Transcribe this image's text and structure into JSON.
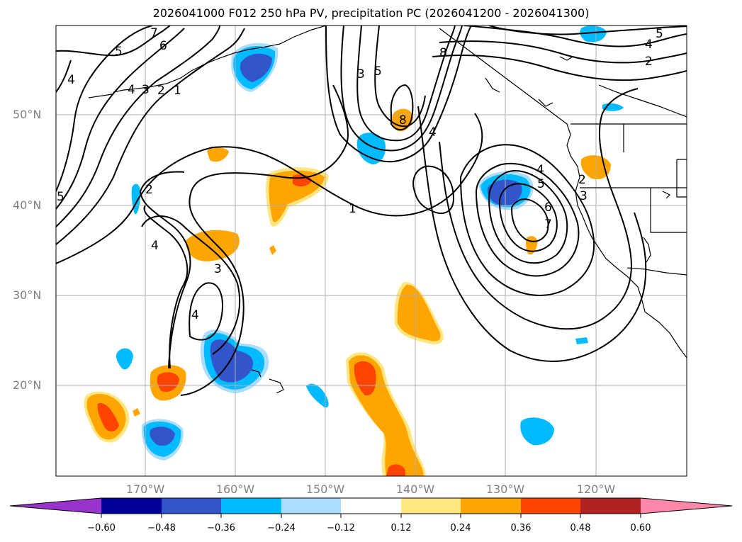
{
  "title": "2026041000 F012 250 hPa PV, precipitation PC (2026041200 - 2026041300)",
  "colors": {
    "contour": "#000000",
    "grid": "#b0b0b0",
    "coast": "#000000",
    "neg": [
      "#9933cc",
      "#000099",
      "#3355cc",
      "#00bbff",
      "#aaddff"
    ],
    "pos": [
      "#ffe680",
      "#ffa500",
      "#ff4400",
      "#b22222",
      "#ff88aa"
    ]
  },
  "lat_labels": [
    "50°N",
    "40°N",
    "30°N",
    "20°N"
  ],
  "lon_labels": [
    "170°W",
    "160°W",
    "150°W",
    "140°W",
    "130°W",
    "120°W"
  ],
  "colorbar": {
    "ticks": [
      "−0.60",
      "−0.48",
      "−0.36",
      "−0.24",
      "−0.12",
      "0.12",
      "0.24",
      "0.36",
      "0.48",
      "0.60"
    ]
  },
  "contour_labels": [
    "7",
    "6",
    "5",
    "4",
    "4",
    "3",
    "2",
    "1",
    "5",
    "2",
    "4",
    "3",
    "4",
    "1",
    "3",
    "5",
    "8",
    "4",
    "8",
    "5",
    "4",
    "2",
    "2",
    "3",
    "4",
    "5",
    "6",
    "7"
  ]
}
